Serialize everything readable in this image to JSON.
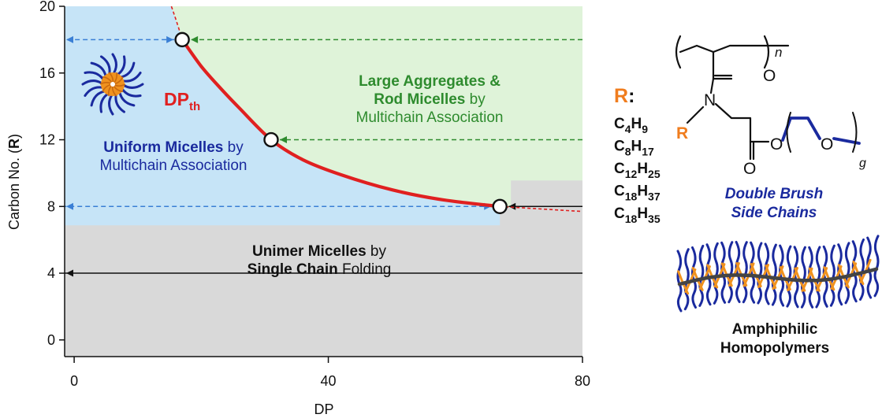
{
  "chart_data": {
    "type": "line",
    "xlabel": "DP",
    "ylabel_text": "Carbon No. (",
    "ylabel_bold": "R",
    "ylabel_end": ")",
    "xlim": [
      -1.5,
      80
    ],
    "ylim": [
      -1,
      20
    ],
    "x_ticks": [
      "0",
      "40",
      "80"
    ],
    "x_tick_values": [
      0,
      40,
      80
    ],
    "y_ticks": [
      "0",
      "4",
      "8",
      "12",
      "16",
      "20"
    ],
    "y_tick_values": [
      0,
      4,
      8,
      12,
      16,
      20
    ],
    "dp_threshold_label": "DP",
    "dp_threshold_sub": "th",
    "threshold_points": [
      {
        "x": 17,
        "y": 18
      },
      {
        "x": 31,
        "y": 12
      },
      {
        "x": 67,
        "y": 8
      }
    ],
    "curve": {
      "x": [
        17,
        20,
        23,
        26,
        31,
        36,
        42,
        50,
        58,
        67
      ],
      "y": [
        18,
        16.4,
        15.1,
        13.9,
        12,
        10.8,
        9.9,
        9.0,
        8.4,
        8
      ]
    },
    "curve_dashed_upper": {
      "x": [
        15.3,
        17
      ],
      "y": [
        20,
        18
      ]
    },
    "curve_dashed_lower": {
      "x": [
        67,
        80
      ],
      "y": [
        8,
        7.7
      ]
    },
    "arrows": [
      {
        "from_x": 80,
        "to_x": 17,
        "y": 18,
        "color": "#2e8b2e",
        "dashed": true
      },
      {
        "from_x": 17,
        "to_x": -1.5,
        "y": 18,
        "color": "#3a7fd5",
        "dashed": true,
        "both_ends": true
      },
      {
        "from_x": 80,
        "to_x": 31,
        "y": 12,
        "color": "#2e8b2e",
        "dashed": true
      },
      {
        "from_x": 80,
        "to_x": 67,
        "y": 8,
        "color": "#111111",
        "dashed": false
      },
      {
        "from_x": 67,
        "to_x": -1.5,
        "y": 8,
        "color": "#3a7fd5",
        "dashed": true,
        "both_ends": true
      },
      {
        "from_x": 80,
        "to_x": -1.5,
        "y": 4,
        "color": "#111111",
        "dashed": false
      }
    ],
    "regions": {
      "large_aggregates": {
        "line1_bold": "Large Aggregates",
        "line1_end": " &",
        "line2_bold": "Rod Micelles",
        "line2_end": " by",
        "line3": "Multichain Association",
        "color": "#2e8b2e"
      },
      "uniform_micelles": {
        "line1_bold": "Uniform Micelles",
        "line1_end": " by",
        "line2": "Multichain Association",
        "color": "#1a2a9e"
      },
      "unimer_micelles": {
        "line1_bold": "Unimer Micelles",
        "line1_end": " by",
        "line2_bold": "Single Chain",
        "line2_end": " Folding",
        "color": "#111111"
      }
    },
    "colors": {
      "uniform_region": "#c6e4f7",
      "aggregate_region": "#dff3d9",
      "unimer_region": "#d9d9d9",
      "curve": "#e02020",
      "blue_chain": "#1a2a9e",
      "orange_chain": "#f0921e"
    }
  },
  "side_panel": {
    "r_label": "R",
    "r_colon": ":",
    "formulas": [
      {
        "c": "C",
        "c_sub": "4",
        "h": "H",
        "h_sub": "9"
      },
      {
        "c": "C",
        "c_sub": "8",
        "h": "H",
        "h_sub": "17"
      },
      {
        "c": "C",
        "c_sub": "12",
        "h": "H",
        "h_sub": "25"
      },
      {
        "c": "C",
        "c_sub": "18",
        "h": "H",
        "h_sub": "37"
      },
      {
        "c": "C",
        "c_sub": "18",
        "h": "H",
        "h_sub": "35"
      }
    ],
    "structure_labels": {
      "n": "n",
      "o1": "O",
      "n_atom": "N",
      "r": "R",
      "o2": "O",
      "o3": "O",
      "o4": "O",
      "g": "g"
    },
    "double_brush_line1": "Double Brush",
    "double_brush_line2": "Side Chains",
    "amphiphilic_line1": "Amphiphilic",
    "amphiphilic_line2": "Homopolymers"
  }
}
